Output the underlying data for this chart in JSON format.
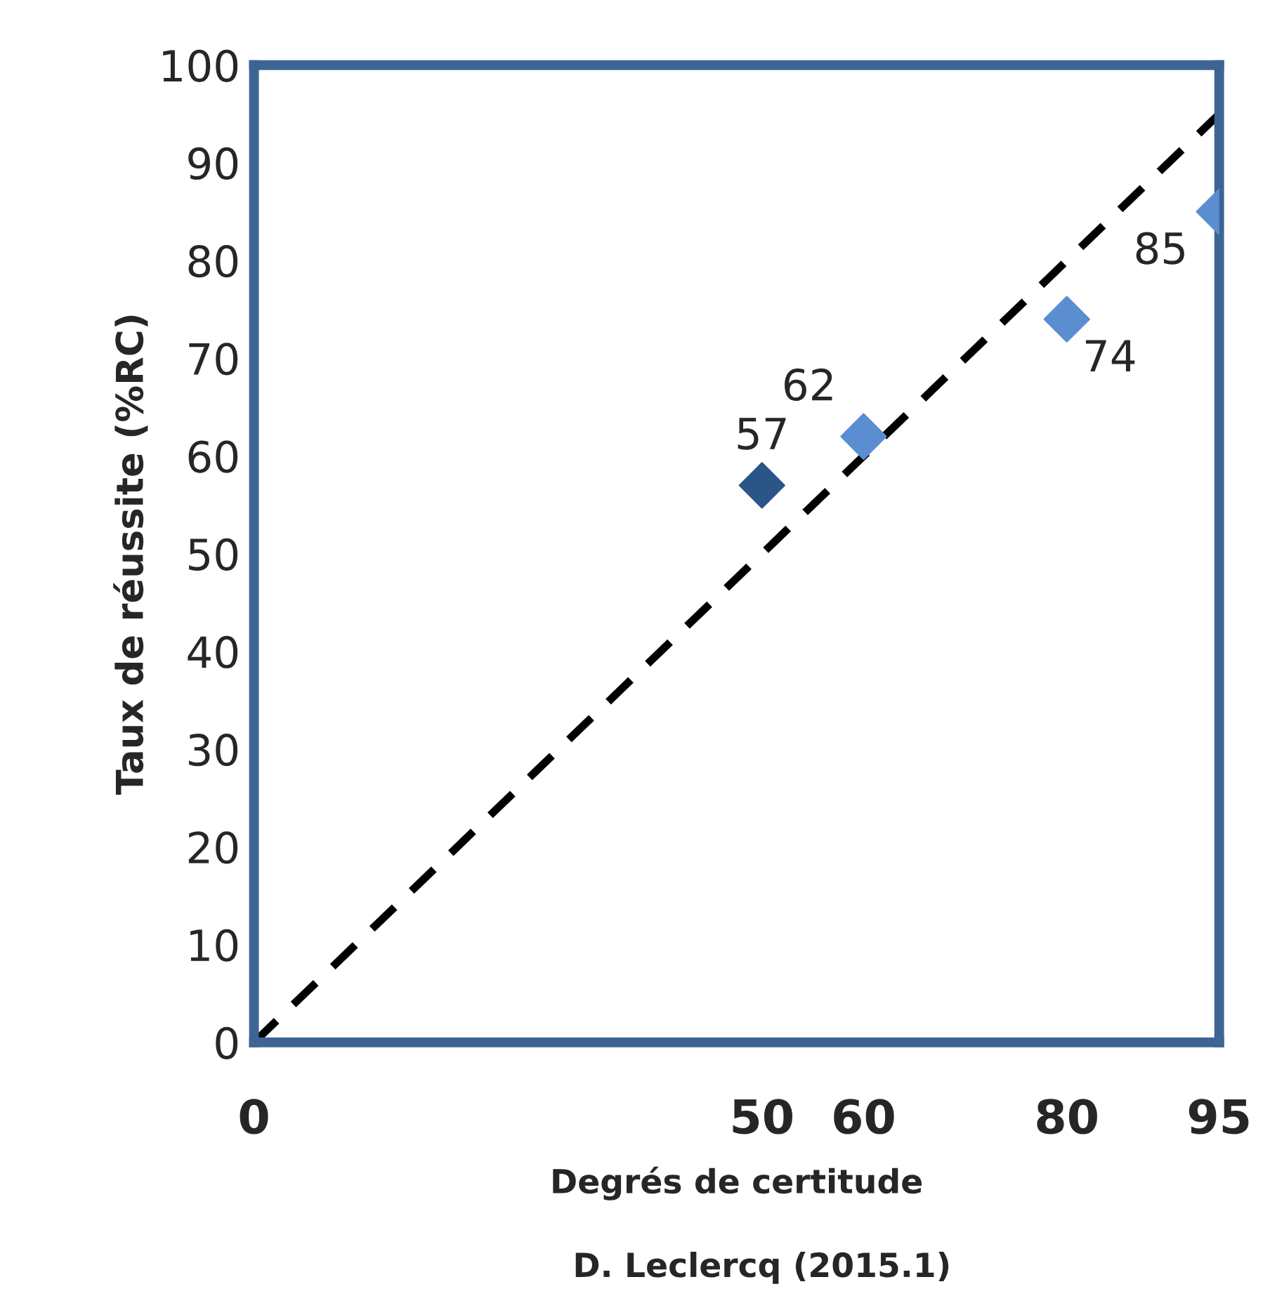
{
  "chart_data": {
    "type": "scatter",
    "xlabel": "Degrés de certitude",
    "ylabel": "Taux de réussite (%RC)",
    "annotations": [
      "D. Leclercq (2015.1)"
    ],
    "series": [
      {
        "x": [
          50,
          60,
          80,
          95
        ],
        "values": [
          57,
          62,
          74,
          85
        ],
        "value_labels": [
          "57",
          "62",
          "74",
          "85"
        ],
        "colors": [
          "#2b5487",
          "#5b8ed0",
          "#5b8ed0",
          "#5b8ed0"
        ],
        "marker": "diamond"
      },
      {
        "type": "line",
        "x": [
          0,
          95
        ],
        "values": [
          0,
          95
        ],
        "color": "#000000",
        "line_style": "dashed",
        "marker": "none"
      }
    ],
    "xlim": [
      0,
      95
    ],
    "xticks": [
      0,
      50,
      60,
      80,
      95
    ],
    "ylim": [
      0,
      100
    ],
    "yticks": [
      0,
      10,
      20,
      30,
      40,
      50,
      60,
      70,
      80,
      90,
      100
    ],
    "grid": false,
    "legend": false
  }
}
